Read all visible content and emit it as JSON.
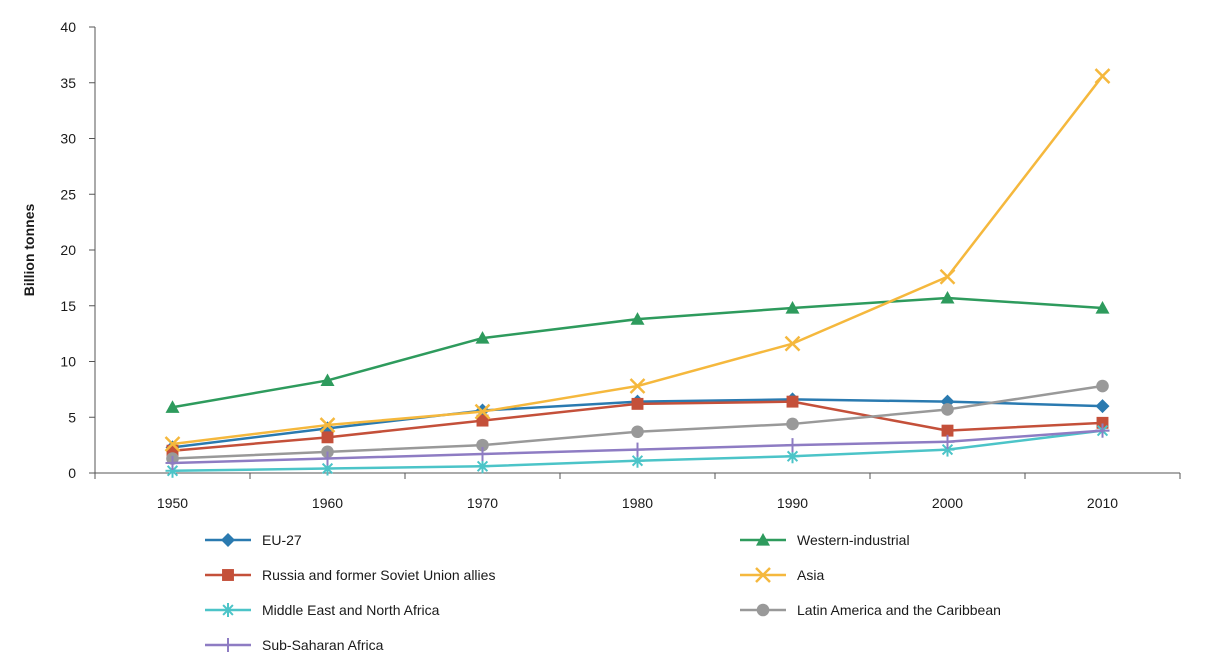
{
  "chart_data": {
    "type": "line",
    "title": "",
    "xlabel": "",
    "ylabel": "Billion tonnes",
    "x": [
      1950,
      1960,
      1970,
      1980,
      1990,
      2000,
      2010
    ],
    "ylim": [
      0,
      40
    ],
    "yticks": [
      0,
      5,
      10,
      15,
      20,
      25,
      30,
      35,
      40
    ],
    "grid": false,
    "legend_position": "bottom",
    "series": [
      {
        "name": "EU-27",
        "color": "#2a7ab0",
        "marker": "diamond",
        "values": [
          2.3,
          4.0,
          5.6,
          6.4,
          6.6,
          6.4,
          6.0
        ]
      },
      {
        "name": "Western-industrial",
        "color": "#2e9b5d",
        "marker": "triangle",
        "values": [
          5.9,
          8.3,
          12.1,
          13.8,
          14.8,
          15.7,
          14.8
        ]
      },
      {
        "name": "Russia and former Soviet Union allies",
        "color": "#c4503a",
        "marker": "square",
        "values": [
          2.0,
          3.2,
          4.7,
          6.2,
          6.4,
          3.8,
          4.5
        ]
      },
      {
        "name": "Asia",
        "color": "#f5b83d",
        "marker": "x",
        "values": [
          2.6,
          4.3,
          5.5,
          7.8,
          11.6,
          17.6,
          35.6
        ]
      },
      {
        "name": "Middle East and North Africa",
        "color": "#4cc4c8",
        "marker": "asterisk",
        "values": [
          0.2,
          0.4,
          0.6,
          1.1,
          1.5,
          2.1,
          3.8
        ]
      },
      {
        "name": "Latin America and the Caribbean",
        "color": "#999999",
        "marker": "circle",
        "values": [
          1.3,
          1.9,
          2.5,
          3.7,
          4.4,
          5.7,
          7.8
        ]
      },
      {
        "name": "Sub-Saharan Africa",
        "color": "#8e7cc3",
        "marker": "plus",
        "values": [
          0.9,
          1.3,
          1.7,
          2.1,
          2.5,
          2.8,
          3.8
        ]
      }
    ]
  }
}
